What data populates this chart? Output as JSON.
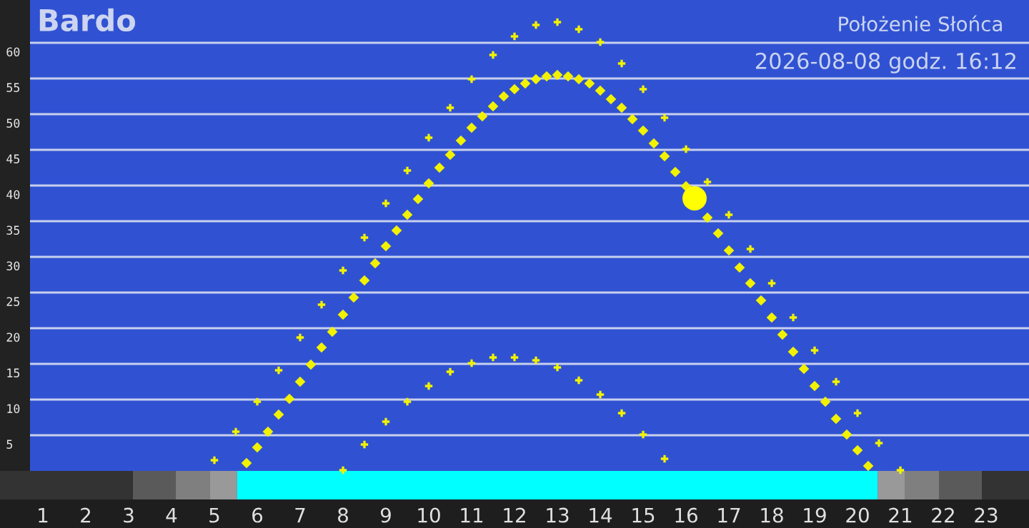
{
  "chart_data": {
    "type": "scatter",
    "title": "Bardo",
    "subtitle": "Położenie Słońca",
    "annotations": [
      "2026-08-08 godz. 16:12"
    ],
    "series": [
      {
        "color": "#f2f200",
        "marker": "diamond",
        "x": [
          5.75,
          6.0,
          6.25,
          6.5,
          6.75,
          7.0,
          7.25,
          7.5,
          7.75,
          8.0,
          8.25,
          8.5,
          8.75,
          9.0,
          9.25,
          9.5,
          9.75,
          10.0,
          10.25,
          10.5,
          10.75,
          11.0,
          11.25,
          11.5,
          11.75,
          12.0,
          12.25,
          12.5,
          12.75,
          13.0,
          13.25,
          13.5,
          13.75,
          14.0,
          14.25,
          14.5,
          14.75,
          15.0,
          15.25,
          15.5,
          15.75,
          16.0,
          16.5,
          16.75,
          17.0,
          17.25,
          17.5,
          17.75,
          18.0,
          18.25,
          18.5,
          18.75,
          19.0,
          19.25,
          19.5,
          19.75,
          20.0,
          20.25
        ],
        "values": [
          1.1,
          3.3,
          5.5,
          7.9,
          10.1,
          12.5,
          14.9,
          17.3,
          19.5,
          21.9,
          24.3,
          26.7,
          29.1,
          31.5,
          33.7,
          35.9,
          38.1,
          40.3,
          42.5,
          44.3,
          46.3,
          48.1,
          49.7,
          51.1,
          52.5,
          53.5,
          54.3,
          54.9,
          55.3,
          55.5,
          55.3,
          54.9,
          54.3,
          53.3,
          52.1,
          50.9,
          49.3,
          47.7,
          45.9,
          44.1,
          41.9,
          39.9,
          35.5,
          33.3,
          30.9,
          28.5,
          26.3,
          23.9,
          21.5,
          19.1,
          16.7,
          14.3,
          11.9,
          9.7,
          7.3,
          5.1,
          2.9,
          0.7
        ]
      },
      {
        "color": "#f2f200",
        "marker": "cross",
        "x": [
          5.0,
          5.5,
          6.0,
          6.5,
          7.0,
          7.5,
          8.0,
          8.5,
          9.0,
          9.5,
          10.0,
          10.5,
          11.0,
          11.5,
          12.0,
          12.5,
          13.0,
          13.5,
          14.0,
          14.5,
          15.0,
          15.5,
          16.0,
          16.5,
          17.0,
          17.5,
          18.0,
          18.5,
          19.0,
          19.5,
          20.0,
          20.5,
          21.0
        ],
        "values": [
          1.5,
          5.5,
          9.7,
          14.1,
          18.7,
          23.3,
          28.1,
          32.7,
          37.5,
          42.1,
          46.7,
          50.9,
          54.9,
          58.3,
          60.9,
          62.5,
          62.9,
          61.9,
          60.1,
          57.1,
          53.5,
          49.5,
          45.1,
          40.5,
          35.9,
          31.1,
          26.3,
          21.5,
          16.9,
          12.5,
          8.1,
          3.9,
          0.1
        ]
      },
      {
        "color": "#f2f200",
        "marker": "cross",
        "x": [
          8.0,
          8.5,
          9.0,
          9.5,
          10.0,
          10.5,
          11.0,
          11.5,
          12.0,
          12.5,
          13.0,
          13.5,
          14.0,
          14.5,
          15.0,
          15.5
        ],
        "values": [
          0.1,
          3.7,
          6.9,
          9.7,
          11.9,
          13.9,
          15.1,
          15.9,
          15.9,
          15.5,
          14.5,
          12.7,
          10.7,
          8.1,
          5.1,
          1.7
        ]
      },
      {
        "color": "#ffff00",
        "marker": "circle",
        "x": [
          16.2
        ],
        "values": [
          38.2
        ]
      }
    ],
    "bands": [
      {
        "axis": "x",
        "from": 0,
        "to": 3.1,
        "color": "#333333"
      },
      {
        "axis": "x",
        "from": 3.1,
        "to": 4.1,
        "color": "#5a5a5a"
      },
      {
        "axis": "x",
        "from": 4.1,
        "to": 4.9,
        "color": "#7f7f7f"
      },
      {
        "axis": "x",
        "from": 4.9,
        "to": 5.53,
        "color": "#999999"
      },
      {
        "axis": "x",
        "from": 5.53,
        "to": 20.47,
        "color": "#00ffff"
      },
      {
        "axis": "x",
        "from": 20.47,
        "to": 21.1,
        "color": "#999999"
      },
      {
        "axis": "x",
        "from": 21.1,
        "to": 21.9,
        "color": "#7f7f7f"
      },
      {
        "axis": "x",
        "from": 21.9,
        "to": 22.9,
        "color": "#5a5a5a"
      },
      {
        "axis": "x",
        "from": 22.9,
        "to": 24,
        "color": "#333333"
      }
    ],
    "xlim": [
      0,
      24
    ],
    "xticks": [
      1,
      2,
      3,
      4,
      5,
      6,
      7,
      8,
      9,
      10,
      11,
      12,
      13,
      14,
      15,
      16,
      17,
      18,
      19,
      20,
      21,
      22,
      23
    ],
    "ylim": [
      -4,
      66
    ],
    "yticks": [
      5,
      10,
      15,
      20,
      25,
      30,
      35,
      40,
      45,
      50,
      55,
      60
    ],
    "grid": "y",
    "legend": false
  }
}
